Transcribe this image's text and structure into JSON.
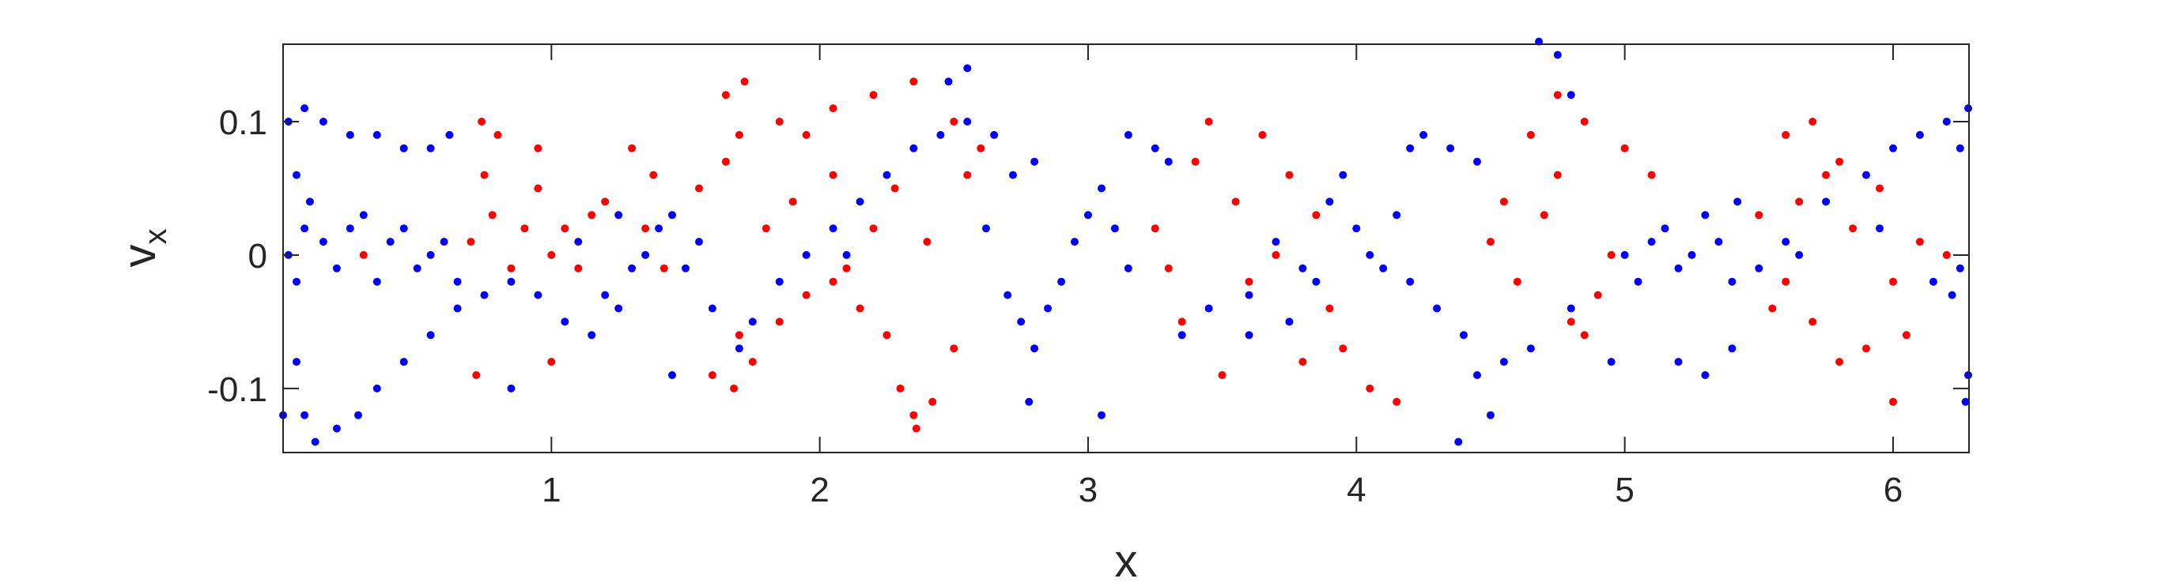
{
  "chart_data": {
    "type": "scatter",
    "xlabel": "x",
    "ylabel": "v",
    "ylabel_subscript": "x",
    "xlim": [
      0,
      6.283
    ],
    "ylim": [
      -0.148,
      0.158
    ],
    "xticks": [
      1,
      2,
      3,
      4,
      5,
      6
    ],
    "xtick_labels": [
      "1",
      "2",
      "3",
      "4",
      "5",
      "6"
    ],
    "yticks": [
      -0.1,
      0,
      0.1
    ],
    "ytick_labels": [
      "-0.1",
      "0",
      "0.1"
    ],
    "grid": false,
    "legend": false,
    "series": [
      {
        "color": "#ff0000",
        "points": [
          [
            0.7,
            0.01
          ],
          [
            0.78,
            0.03
          ],
          [
            0.85,
            -0.01
          ],
          [
            0.9,
            0.02
          ],
          [
            0.95,
            0.05
          ],
          [
            1.0,
            0.0
          ],
          [
            1.05,
            0.02
          ],
          [
            1.1,
            -0.01
          ],
          [
            1.15,
            0.03
          ],
          [
            1.2,
            0.04
          ],
          [
            0.75,
            0.06
          ],
          [
            0.8,
            0.09
          ],
          [
            0.74,
            0.1
          ],
          [
            0.95,
            0.08
          ],
          [
            1.0,
            -0.08
          ],
          [
            0.72,
            -0.09
          ],
          [
            1.3,
            0.08
          ],
          [
            1.38,
            0.06
          ],
          [
            1.7,
            -0.06
          ],
          [
            1.6,
            -0.09
          ],
          [
            1.68,
            -0.1
          ],
          [
            1.75,
            -0.08
          ],
          [
            1.85,
            -0.05
          ],
          [
            1.95,
            -0.03
          ],
          [
            2.05,
            -0.02
          ],
          [
            2.15,
            -0.04
          ],
          [
            2.25,
            -0.06
          ],
          [
            2.3,
            -0.1
          ],
          [
            2.35,
            -0.12
          ],
          [
            2.42,
            -0.11
          ],
          [
            2.5,
            -0.07
          ],
          [
            1.65,
            0.07
          ],
          [
            1.7,
            0.09
          ],
          [
            1.65,
            0.12
          ],
          [
            1.72,
            0.13
          ],
          [
            1.85,
            0.1
          ],
          [
            1.95,
            0.09
          ],
          [
            2.05,
            0.11
          ],
          [
            2.2,
            0.12
          ],
          [
            2.35,
            0.13
          ],
          [
            2.5,
            0.1
          ],
          [
            2.55,
            0.06
          ],
          [
            2.6,
            0.08
          ],
          [
            2.05,
            0.06
          ],
          [
            1.9,
            0.04
          ],
          [
            1.8,
            0.02
          ],
          [
            2.1,
            -0.01
          ],
          [
            2.2,
            0.02
          ],
          [
            2.4,
            0.01
          ],
          [
            2.28,
            0.05
          ],
          [
            1.35,
            0.02
          ],
          [
            1.42,
            -0.01
          ],
          [
            1.55,
            0.05
          ],
          [
            3.25,
            0.02
          ],
          [
            3.3,
            -0.01
          ],
          [
            3.4,
            0.07
          ],
          [
            3.45,
            0.1
          ],
          [
            3.55,
            0.04
          ],
          [
            3.6,
            -0.02
          ],
          [
            3.7,
            0.0
          ],
          [
            3.75,
            0.06
          ],
          [
            3.85,
            0.03
          ],
          [
            3.9,
            -0.04
          ],
          [
            3.95,
            -0.07
          ],
          [
            3.35,
            -0.05
          ],
          [
            3.5,
            -0.09
          ],
          [
            3.8,
            -0.08
          ],
          [
            3.65,
            0.09
          ],
          [
            4.05,
            -0.1
          ],
          [
            4.15,
            -0.11
          ],
          [
            4.5,
            0.01
          ],
          [
            4.55,
            0.04
          ],
          [
            4.6,
            -0.02
          ],
          [
            4.7,
            0.03
          ],
          [
            4.75,
            0.06
          ],
          [
            4.8,
            -0.05
          ],
          [
            4.9,
            -0.03
          ],
          [
            4.95,
            0.0
          ],
          [
            4.65,
            0.09
          ],
          [
            4.75,
            0.12
          ],
          [
            4.85,
            0.1
          ],
          [
            5.0,
            0.08
          ],
          [
            5.1,
            0.06
          ],
          [
            4.85,
            -0.06
          ],
          [
            5.6,
            -0.02
          ],
          [
            5.65,
            0.04
          ],
          [
            5.7,
            -0.05
          ],
          [
            5.75,
            0.06
          ],
          [
            5.8,
            -0.08
          ],
          [
            5.85,
            0.02
          ],
          [
            5.9,
            -0.07
          ],
          [
            5.95,
            0.05
          ],
          [
            6.0,
            -0.02
          ],
          [
            6.05,
            -0.06
          ],
          [
            6.1,
            0.01
          ],
          [
            6.2,
            0.0
          ],
          [
            5.55,
            -0.04
          ],
          [
            5.5,
            0.03
          ],
          [
            5.6,
            0.09
          ],
          [
            5.8,
            0.07
          ],
          [
            5.7,
            0.1
          ],
          [
            6.0,
            -0.11
          ],
          [
            0.3,
            0.0
          ],
          [
            2.36,
            -0.13
          ]
        ]
      },
      {
        "color": "#0000ff",
        "points": [
          [
            0.02,
            0.1
          ],
          [
            0.08,
            0.11
          ],
          [
            0.15,
            0.1
          ],
          [
            0.25,
            0.09
          ],
          [
            0.35,
            0.09
          ],
          [
            0.45,
            0.08
          ],
          [
            0.55,
            0.08
          ],
          [
            0.62,
            0.09
          ],
          [
            0.05,
            0.06
          ],
          [
            0.1,
            0.04
          ],
          [
            0.02,
            0.0
          ],
          [
            0.05,
            -0.02
          ],
          [
            0.08,
            0.02
          ],
          [
            0.15,
            0.01
          ],
          [
            0.2,
            -0.01
          ],
          [
            0.25,
            0.02
          ],
          [
            0.3,
            0.03
          ],
          [
            0.35,
            -0.02
          ],
          [
            0.4,
            0.01
          ],
          [
            0.45,
            0.02
          ],
          [
            0.5,
            -0.01
          ],
          [
            0.55,
            0.0
          ],
          [
            0.6,
            0.01
          ],
          [
            0.65,
            -0.02
          ],
          [
            0.05,
            -0.08
          ],
          [
            0.08,
            -0.12
          ],
          [
            0.12,
            -0.14
          ],
          [
            0.2,
            -0.13
          ],
          [
            0.28,
            -0.12
          ],
          [
            0.35,
            -0.1
          ],
          [
            0.45,
            -0.08
          ],
          [
            0.55,
            -0.06
          ],
          [
            0.65,
            -0.04
          ],
          [
            0.75,
            -0.03
          ],
          [
            0.85,
            -0.02
          ],
          [
            0.95,
            -0.03
          ],
          [
            1.05,
            -0.05
          ],
          [
            1.15,
            -0.06
          ],
          [
            1.25,
            -0.04
          ],
          [
            1.3,
            -0.01
          ],
          [
            1.35,
            0.0
          ],
          [
            1.4,
            0.02
          ],
          [
            1.45,
            0.03
          ],
          [
            1.5,
            -0.01
          ],
          [
            1.55,
            0.01
          ],
          [
            1.45,
            -0.09
          ],
          [
            0.85,
            -0.1
          ],
          [
            1.2,
            -0.03
          ],
          [
            1.6,
            -0.04
          ],
          [
            1.7,
            -0.07
          ],
          [
            1.75,
            -0.05
          ],
          [
            1.85,
            -0.02
          ],
          [
            1.95,
            0.0
          ],
          [
            2.05,
            0.02
          ],
          [
            2.15,
            0.04
          ],
          [
            2.25,
            0.06
          ],
          [
            2.35,
            0.08
          ],
          [
            2.45,
            0.09
          ],
          [
            2.55,
            0.1
          ],
          [
            2.65,
            0.09
          ],
          [
            2.72,
            0.06
          ],
          [
            2.8,
            0.07
          ],
          [
            2.55,
            0.14
          ],
          [
            2.48,
            0.13
          ],
          [
            2.62,
            0.02
          ],
          [
            2.7,
            -0.03
          ],
          [
            2.75,
            -0.05
          ],
          [
            2.8,
            -0.07
          ],
          [
            2.85,
            -0.04
          ],
          [
            2.9,
            -0.02
          ],
          [
            2.95,
            0.01
          ],
          [
            3.0,
            0.03
          ],
          [
            3.05,
            0.05
          ],
          [
            3.1,
            0.02
          ],
          [
            3.15,
            -0.01
          ],
          [
            2.78,
            -0.11
          ],
          [
            3.05,
            -0.12
          ],
          [
            3.15,
            0.09
          ],
          [
            3.25,
            0.08
          ],
          [
            3.3,
            0.07
          ],
          [
            3.35,
            -0.06
          ],
          [
            3.45,
            -0.04
          ],
          [
            3.6,
            -0.03
          ],
          [
            3.7,
            0.01
          ],
          [
            3.8,
            -0.01
          ],
          [
            3.9,
            0.04
          ],
          [
            3.95,
            0.06
          ],
          [
            4.0,
            0.02
          ],
          [
            4.05,
            0.0
          ],
          [
            4.1,
            -0.01
          ],
          [
            4.15,
            0.03
          ],
          [
            4.2,
            0.08
          ],
          [
            4.25,
            0.09
          ],
          [
            4.35,
            0.08
          ],
          [
            4.45,
            0.07
          ],
          [
            4.2,
            -0.02
          ],
          [
            4.3,
            -0.04
          ],
          [
            4.4,
            -0.06
          ],
          [
            4.45,
            -0.09
          ],
          [
            4.38,
            -0.14
          ],
          [
            4.68,
            0.16
          ],
          [
            4.75,
            0.15
          ],
          [
            4.8,
            0.12
          ],
          [
            4.55,
            -0.08
          ],
          [
            4.65,
            -0.07
          ],
          [
            4.8,
            -0.04
          ],
          [
            4.95,
            -0.08
          ],
          [
            5.0,
            0.0
          ],
          [
            5.05,
            -0.02
          ],
          [
            5.1,
            0.01
          ],
          [
            5.15,
            0.02
          ],
          [
            5.2,
            -0.01
          ],
          [
            5.25,
            0.0
          ],
          [
            5.3,
            0.03
          ],
          [
            5.35,
            0.01
          ],
          [
            5.4,
            -0.02
          ],
          [
            5.42,
            0.04
          ],
          [
            5.2,
            -0.08
          ],
          [
            5.3,
            -0.09
          ],
          [
            5.4,
            -0.07
          ],
          [
            5.5,
            -0.01
          ],
          [
            5.6,
            0.01
          ],
          [
            5.65,
            0.0
          ],
          [
            5.75,
            0.04
          ],
          [
            5.9,
            0.06
          ],
          [
            6.0,
            0.08
          ],
          [
            6.1,
            0.09
          ],
          [
            6.2,
            0.1
          ],
          [
            6.25,
            0.08
          ],
          [
            6.28,
            0.11
          ],
          [
            6.25,
            -0.01
          ],
          [
            6.22,
            -0.03
          ],
          [
            6.28,
            -0.09
          ],
          [
            6.27,
            -0.11
          ],
          [
            6.15,
            -0.02
          ],
          [
            5.95,
            0.02
          ],
          [
            3.6,
            -0.06
          ],
          [
            3.75,
            -0.05
          ],
          [
            3.85,
            -0.02
          ],
          [
            4.5,
            -0.12
          ],
          [
            2.1,
            0.0
          ],
          [
            1.1,
            0.01
          ],
          [
            1.25,
            0.03
          ],
          [
            0.0,
            -0.12
          ]
        ]
      }
    ]
  }
}
